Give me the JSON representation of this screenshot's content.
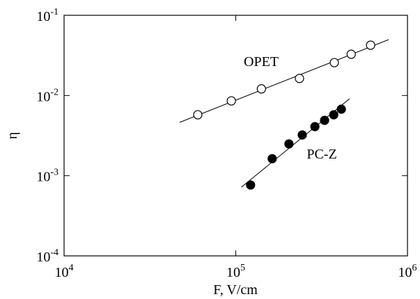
{
  "chart_data": {
    "type": "scatter",
    "x_label": "F, V/cm",
    "y_label": "η",
    "log_x": true,
    "log_y": true,
    "xlim": [
      10000,
      1000000
    ],
    "xticks": [
      {
        "value": 10000,
        "label": "10^4"
      },
      {
        "value": 100000,
        "label": "10^5"
      },
      {
        "value": 1000000,
        "label": "10^6"
      }
    ],
    "ylim": [
      0.0001,
      0.1
    ],
    "yticks": [
      {
        "value": 0.0001,
        "label": "10^-4"
      },
      {
        "value": 0.001,
        "label": "10^-3"
      },
      {
        "value": 0.01,
        "label": "10^-2"
      },
      {
        "value": 0.1,
        "label": "10^-1"
      }
    ],
    "series": [
      {
        "name": "OPET",
        "marker": "open",
        "color": "#000000",
        "x": [
          60100,
          94200,
          141000,
          235000,
          375000,
          470000,
          610000
        ],
        "values": [
          0.00575,
          0.00857,
          0.0121,
          0.0163,
          0.0257,
          0.0327,
          0.0424
        ]
      },
      {
        "name": "PC-Z",
        "marker": "filled",
        "color": "#000000",
        "x": [
          122000,
          163000,
          204000,
          244000,
          289000,
          329000,
          372000,
          412000
        ],
        "values": [
          0.000765,
          0.00163,
          0.00249,
          0.00322,
          0.00409,
          0.0049,
          0.00575,
          0.00675
        ]
      }
    ],
    "fit_lines": [
      {
        "x": [
          47100,
          777000
        ],
        "values": [
          0.00462,
          0.0497
        ],
        "color": "#000000"
      },
      {
        "x": [
          108000,
          460000
        ],
        "values": [
          0.000721,
          0.0091
        ],
        "color": "#000000"
      }
    ]
  }
}
